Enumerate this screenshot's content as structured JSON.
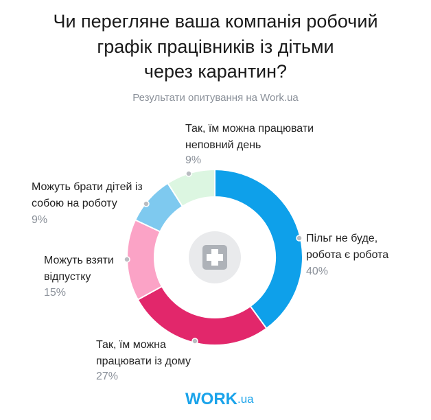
{
  "chart_data": {
    "type": "donut",
    "title": [
      "Чи перегляне ваша компанія робочий",
      "графік працівників із дітьми",
      "через карантин?"
    ],
    "subtitle": "Результати опитування на Work.ua",
    "categories": [
      [
        "Пільг не буде,",
        "робота є робота"
      ],
      [
        "Так, їм можна",
        "працювати із дому"
      ],
      [
        "Можуть взяти",
        "відпустку"
      ],
      [
        "Можуть брати дітей із",
        "собою на роботу"
      ],
      [
        "Так, їм можна працювати",
        "неповний день"
      ]
    ],
    "values": [
      40,
      27,
      15,
      9,
      9
    ],
    "value_labels": [
      "40%",
      "27%",
      "15%",
      "9%",
      "9%"
    ],
    "colors": [
      "#0ea0ea",
      "#e2276b",
      "#fba3c6",
      "#7ec9ef",
      "#dcf6e1"
    ],
    "logo": {
      "main": "WORK",
      "suffix": ".ua"
    }
  }
}
